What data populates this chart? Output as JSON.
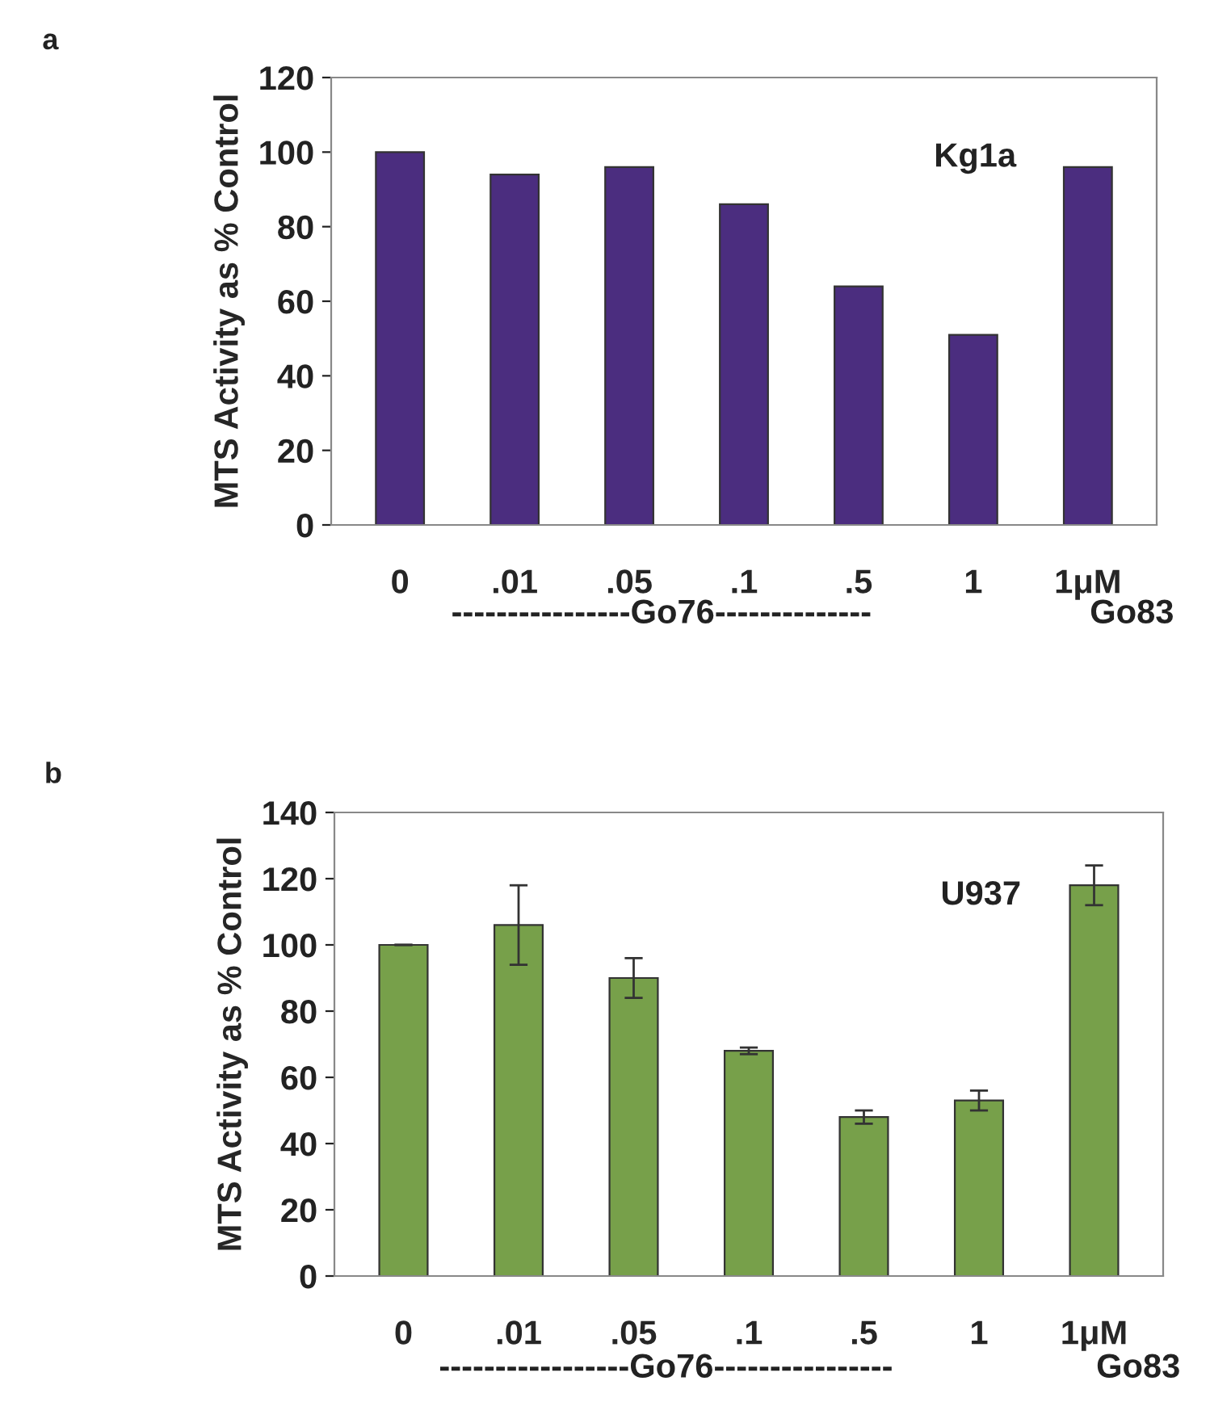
{
  "chart_data": [
    {
      "type": "bar",
      "ylabel": "MTS Activity as % Control",
      "categories": [
        "0",
        ".01",
        ".05",
        ".1",
        ".5",
        "1",
        "1μM"
      ],
      "values": [
        100,
        94,
        96,
        86,
        64,
        51,
        96
      ],
      "color": "#4b2d7f",
      "ylim": [
        0,
        120
      ],
      "yticks": [
        0,
        20,
        40,
        60,
        80,
        100,
        120
      ],
      "grid": false,
      "annotations": [
        "a",
        "Kg1a",
        "----------------Go76--------------",
        "Go83"
      ]
    },
    {
      "type": "bar",
      "ylabel": "MTS Activity as % Control",
      "categories": [
        "0",
        ".01",
        ".05",
        ".1",
        ".5",
        "1",
        "1μM"
      ],
      "values": [
        100,
        106,
        90,
        68,
        48,
        53,
        118
      ],
      "errors": [
        null,
        12,
        6,
        1,
        2,
        3,
        6
      ],
      "color": "#77a04a",
      "ylim": [
        0,
        140
      ],
      "yticks": [
        0,
        20,
        40,
        60,
        80,
        100,
        120,
        140
      ],
      "grid": false,
      "annotations": [
        "b",
        "U937",
        "-----------------Go76----------------",
        "Go83"
      ]
    }
  ]
}
